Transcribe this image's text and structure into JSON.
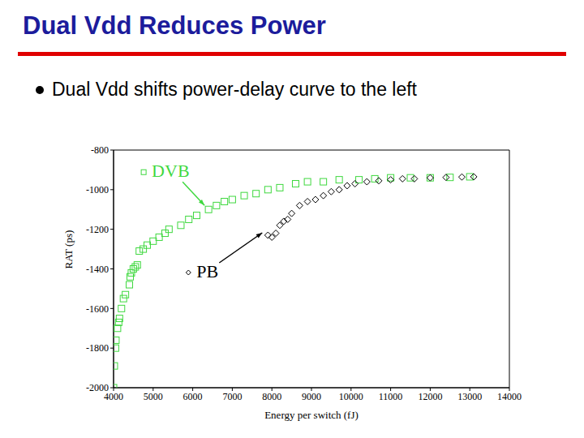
{
  "chart_data": {
    "type": "scatter",
    "title": "Dual Vdd Reduces Power",
    "subtitle": "Dual Vdd shifts power-delay curve to the left",
    "x_label": "Energy per switch (fJ)",
    "y_label": "RAT (ps)",
    "xlim": [
      4000,
      14000
    ],
    "xticks": [
      4000,
      5000,
      6000,
      7000,
      8000,
      9000,
      10000,
      11000,
      12000,
      13000,
      14000
    ],
    "ylim": [
      -2000,
      -800
    ],
    "yticks": [
      -2000,
      -1800,
      -1600,
      -1400,
      -1200,
      -1000,
      -800
    ],
    "grid": false,
    "series": [
      {
        "name": "DVB",
        "color": "#3fd83f",
        "marker": "square",
        "x": [
          4000,
          4020,
          4050,
          4060,
          4100,
          4130,
          4150,
          4200,
          4250,
          4300,
          4400,
          4420,
          4450,
          4500,
          4550,
          4600,
          4650,
          4750,
          4850,
          5000,
          5150,
          5300,
          5400,
          5700,
          5900,
          6100,
          6400,
          6600,
          6800,
          7000,
          7300,
          7600,
          7900,
          8200,
          8600,
          8900,
          9300,
          9700,
          10200,
          10600,
          11000,
          11500,
          12000,
          12500,
          13000
        ],
        "values": [
          -2000,
          -1890,
          -1800,
          -1760,
          -1700,
          -1670,
          -1650,
          -1600,
          -1550,
          -1530,
          -1480,
          -1440,
          -1420,
          -1400,
          -1390,
          -1380,
          -1310,
          -1300,
          -1280,
          -1260,
          -1240,
          -1220,
          -1200,
          -1180,
          -1150,
          -1130,
          -1100,
          -1080,
          -1060,
          -1050,
          -1030,
          -1020,
          -1000,
          -990,
          -970,
          -960,
          -960,
          -950,
          -950,
          -945,
          -940,
          -940,
          -940,
          -938,
          -935
        ]
      },
      {
        "name": "PB",
        "color": "#000000",
        "marker": "diamond",
        "x": [
          7900,
          8000,
          8100,
          8200,
          8300,
          8400,
          8500,
          8700,
          8900,
          9100,
          9300,
          9500,
          9700,
          9900,
          10100,
          10400,
          10700,
          11000,
          11300,
          11600,
          12000,
          12400,
          12800,
          13100
        ],
        "values": [
          -1230,
          -1240,
          -1220,
          -1180,
          -1160,
          -1150,
          -1120,
          -1080,
          -1060,
          -1050,
          -1030,
          -1010,
          -1000,
          -980,
          -970,
          -960,
          -955,
          -950,
          -945,
          -945,
          -940,
          -938,
          -936,
          -935
        ]
      }
    ]
  }
}
